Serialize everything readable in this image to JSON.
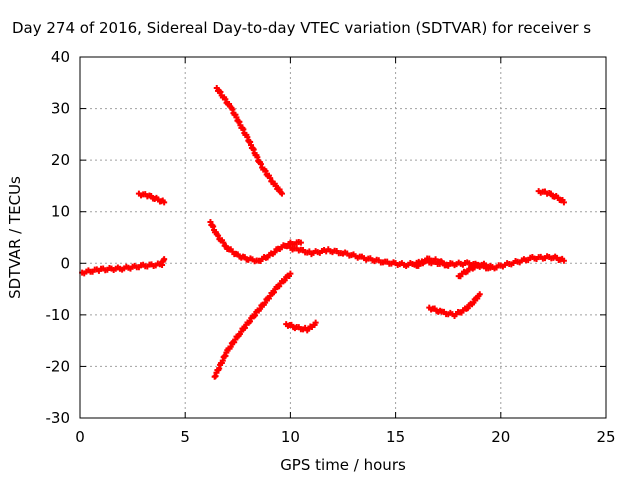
{
  "chart_data": {
    "type": "scatter",
    "title": "Day 274 of 2016, Sidereal Day-to-day VTEC variation (SDTVAR) for receiver s",
    "xlabel": "GPS time / hours",
    "ylabel": "SDTVAR / TECUs",
    "xlim": [
      0,
      25
    ],
    "ylim": [
      -30,
      40
    ],
    "xticks": [
      0,
      5,
      10,
      15,
      20,
      25
    ],
    "yticks": [
      -30,
      -20,
      -10,
      0,
      10,
      20,
      30,
      40
    ],
    "grid": true,
    "marker": "+",
    "series_color": "#ff0000",
    "segments": [
      {
        "points": [
          [
            0.1,
            -1.8
          ],
          [
            1.0,
            -1.2
          ],
          [
            2.0,
            -1.0
          ],
          [
            3.0,
            -0.5
          ],
          [
            3.9,
            -0.2
          ],
          [
            4.0,
            0.8
          ]
        ]
      },
      {
        "points": [
          [
            2.8,
            13.5
          ],
          [
            3.3,
            13.0
          ],
          [
            3.8,
            12.2
          ],
          [
            4.0,
            11.8
          ]
        ]
      },
      {
        "points": [
          [
            6.5,
            34
          ],
          [
            7.2,
            30
          ],
          [
            8.0,
            24
          ],
          [
            8.6,
            19
          ],
          [
            9.2,
            15.5
          ],
          [
            9.6,
            13.5
          ]
        ]
      },
      {
        "points": [
          [
            6.2,
            8.0
          ],
          [
            6.5,
            5.5
          ],
          [
            7.0,
            3.0
          ],
          [
            7.5,
            1.5
          ],
          [
            8.0,
            0.8
          ],
          [
            8.5,
            0.5
          ],
          [
            9.0,
            1.5
          ],
          [
            9.5,
            3.0
          ],
          [
            10.0,
            3.8
          ],
          [
            10.5,
            4.0
          ]
        ]
      },
      {
        "points": [
          [
            6.4,
            -22
          ],
          [
            7.0,
            -17
          ],
          [
            7.6,
            -13.5
          ],
          [
            8.2,
            -10.5
          ],
          [
            8.8,
            -7.5
          ],
          [
            9.4,
            -4.5
          ],
          [
            10.0,
            -2.0
          ]
        ]
      },
      {
        "points": [
          [
            9.8,
            -11.8
          ],
          [
            10.3,
            -12.5
          ],
          [
            10.8,
            -12.8
          ],
          [
            11.1,
            -12.2
          ],
          [
            11.2,
            -11.5
          ]
        ]
      },
      {
        "points": [
          [
            10.0,
            3.0
          ],
          [
            10.5,
            2.5
          ],
          [
            11.0,
            2.0
          ],
          [
            11.8,
            2.5
          ],
          [
            12.5,
            2.0
          ],
          [
            13.5,
            1.0
          ],
          [
            14.5,
            0.2
          ],
          [
            15.5,
            -0.3
          ],
          [
            16.5,
            0.3
          ],
          [
            17.5,
            -0.2
          ],
          [
            18.5,
            0.0
          ],
          [
            19.5,
            -1.0
          ],
          [
            20.5,
            0.0
          ],
          [
            21.5,
            1.0
          ],
          [
            22.5,
            1.2
          ],
          [
            23.0,
            0.5
          ]
        ]
      },
      {
        "points": [
          [
            16.0,
            -0.5
          ],
          [
            16.5,
            0.8
          ],
          [
            17.0,
            0.5
          ],
          [
            17.5,
            -0.5
          ]
        ]
      },
      {
        "points": [
          [
            16.6,
            -8.6
          ],
          [
            17.2,
            -9.5
          ],
          [
            17.8,
            -10.0
          ],
          [
            18.3,
            -9.0
          ],
          [
            18.7,
            -7.5
          ],
          [
            19.0,
            -6.0
          ]
        ]
      },
      {
        "points": [
          [
            18.0,
            -2.5
          ],
          [
            18.5,
            -1.2
          ],
          [
            19.0,
            -0.2
          ],
          [
            19.5,
            -0.5
          ]
        ]
      },
      {
        "points": [
          [
            21.8,
            14.0
          ],
          [
            22.3,
            13.5
          ],
          [
            22.8,
            12.5
          ],
          [
            23.0,
            11.8
          ]
        ]
      }
    ]
  }
}
